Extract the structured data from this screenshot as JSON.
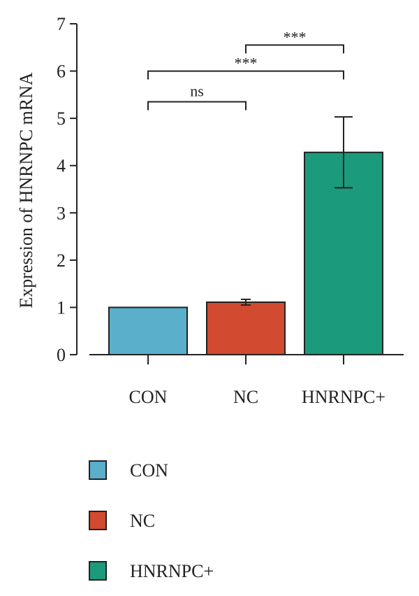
{
  "chart_data": {
    "type": "bar",
    "title": "",
    "xlabel": "",
    "ylabel": "Expression of HNRNPC mRNA",
    "ylim": [
      0,
      7
    ],
    "yticks": [
      0,
      1,
      2,
      3,
      4,
      5,
      6,
      7
    ],
    "categories": [
      "CON",
      "NC",
      "HNRNPC+"
    ],
    "values": [
      1.0,
      1.11,
      4.28
    ],
    "errors": [
      0.0,
      0.06,
      0.75
    ],
    "colors": [
      "#5aafcb",
      "#d24a2f",
      "#1b9a7c"
    ],
    "grid": false,
    "legend": {
      "placement": "bottom-left",
      "entries": [
        "CON",
        "NC",
        "HNRNPC+"
      ]
    },
    "significance": [
      {
        "from": "CON",
        "to": "NC",
        "label": "ns",
        "y": 5.35
      },
      {
        "from": "CON",
        "to": "HNRNPC+",
        "label": "***",
        "y": 6.0
      },
      {
        "from": "NC",
        "to": "HNRNPC+",
        "label": "***",
        "y": 6.55
      }
    ]
  }
}
